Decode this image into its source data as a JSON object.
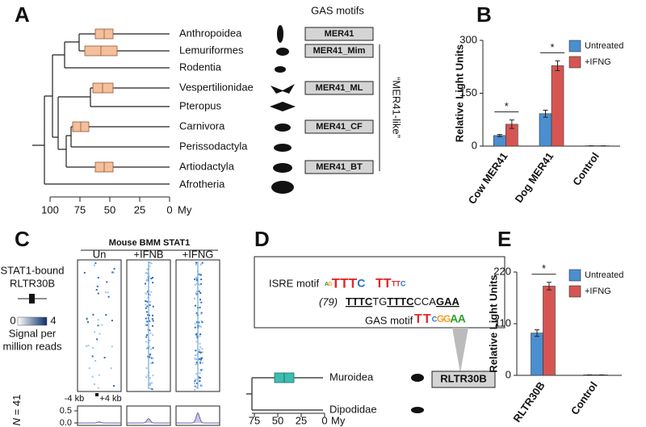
{
  "panels": {
    "A": {
      "label": "A",
      "header": "GAS motifs",
      "taxa": [
        {
          "name": "Anthropoidea",
          "motif": "MER41"
        },
        {
          "name": "Lemuriformes",
          "motif": "MER41_Mim"
        },
        {
          "name": "Rodentia"
        },
        {
          "name": "Vespertilionidae",
          "motif": "MER41_ML"
        },
        {
          "name": "Pteropus"
        },
        {
          "name": "Carnivora",
          "motif": "MER41_CF"
        },
        {
          "name": "Perissodactyla"
        },
        {
          "name": "Artiodactyla",
          "motif": "MER41_BT"
        },
        {
          "name": "Afrotheria"
        }
      ],
      "bracket_label": "“MER41-like”",
      "time_ticks": [
        100,
        75,
        50,
        25,
        0
      ],
      "time_unit": "My"
    },
    "B": {
      "label": "B"
    },
    "C": {
      "label": "C",
      "title": "Mouse BMM STAT1",
      "columns": [
        "Un",
        "+IFNB",
        "+IFNG"
      ],
      "element_label": [
        "STAT1-bound",
        "RLTR30B"
      ],
      "colorbar_ticks": [
        0,
        4
      ],
      "colorbar_label": [
        "Signal per",
        "million reads"
      ],
      "window_labels": [
        "-4 kb",
        "+4 kb"
      ],
      "n_label": {
        "symbol": "N",
        "text": "= 41"
      },
      "profile_ylim": [
        0,
        0.5
      ],
      "profile_yticks": [
        {
          "value": 0,
          "label": "0.0"
        },
        {
          "value": 0.5,
          "label": "0.5"
        }
      ],
      "profile_peaks": [
        0.04,
        0.18,
        0.42
      ]
    },
    "D": {
      "label": "D",
      "isre_label": "ISRE motif",
      "isre_logo": [
        "A",
        "G",
        "T",
        "T",
        "T",
        "C",
        "T",
        "T",
        "T",
        "T",
        "C"
      ],
      "count": "(79)",
      "sequence": [
        {
          "text": "TTTC",
          "bold": true
        },
        {
          "text": "TG",
          "bold": false
        },
        {
          "text": "TTTC",
          "bold": true
        },
        {
          "text": "CCA",
          "bold": false
        },
        {
          "text": "GAA",
          "bold": true
        }
      ],
      "gas_label": "GAS motif",
      "gas_logo": [
        "T",
        "T",
        "C",
        "G",
        "G",
        "A",
        "A"
      ],
      "element": "RLTR30B",
      "taxa": [
        "Muroidea",
        "Dipodidae"
      ],
      "time_ticks": [
        75,
        50,
        25,
        0
      ],
      "time_unit": "My"
    },
    "E": {
      "label": "E"
    }
  },
  "chart_data": [
    {
      "type": "bar",
      "ylabel": "Relative Light Units",
      "categories": [
        "Cow MER41",
        "Dog MER41",
        "Control"
      ],
      "series": [
        {
          "name": "Untreated",
          "color": "#4a8fd0",
          "values": [
            30,
            92,
            1
          ],
          "errors": [
            3,
            10,
            0
          ]
        },
        {
          "name": "+IFNG",
          "color": "#d65552",
          "values": [
            62,
            228,
            1
          ],
          "errors": [
            12,
            14,
            0
          ]
        }
      ],
      "ylim": [
        0,
        300
      ],
      "yticks": [
        0,
        150,
        300
      ],
      "significance": [
        "*",
        "*"
      ],
      "legend": "upper right"
    },
    {
      "type": "bar",
      "ylabel": "Relative Light Units",
      "categories": [
        "RLTR30B",
        "Control"
      ],
      "series": [
        {
          "name": "Untreated",
          "color": "#4a8fd0",
          "values": [
            90,
            1
          ],
          "errors": [
            7,
            0
          ]
        },
        {
          "name": "+IFNG",
          "color": "#d65552",
          "values": [
            190,
            1
          ],
          "errors": [
            8,
            0
          ]
        }
      ],
      "ylim": [
        0,
        220
      ],
      "yticks": [
        0,
        110,
        220
      ],
      "significance": [
        "*"
      ],
      "legend": "upper right"
    }
  ]
}
